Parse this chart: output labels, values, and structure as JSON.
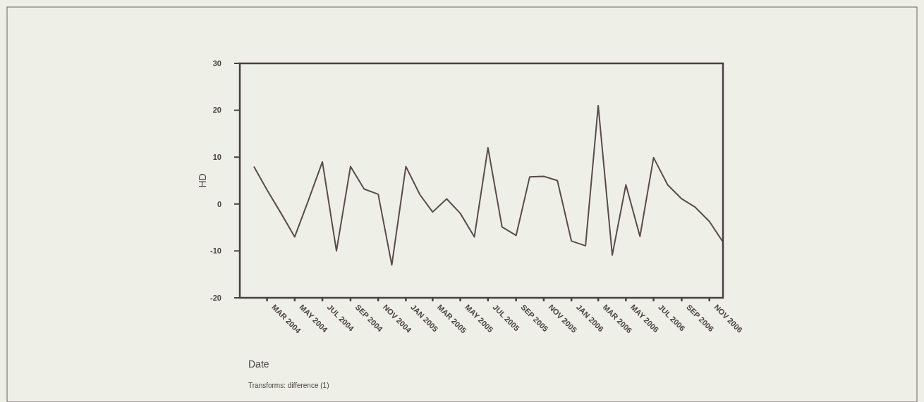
{
  "chart_data": {
    "type": "line",
    "ylabel": "HD",
    "xlabel": "Date",
    "annotations": [
      "Transforms: difference (1)"
    ],
    "x": [
      "2004-02",
      "2004-03",
      "2004-04",
      "2004-05",
      "2004-06",
      "2004-07",
      "2004-08",
      "2004-09",
      "2004-10",
      "2004-11",
      "2004-12",
      "2005-01",
      "2005-02",
      "2005-03",
      "2005-04",
      "2005-05",
      "2005-06",
      "2005-07",
      "2005-08",
      "2005-09",
      "2005-10",
      "2005-11",
      "2005-12",
      "2006-01",
      "2006-02",
      "2006-03",
      "2006-04",
      "2006-05",
      "2006-06",
      "2006-07",
      "2006-08",
      "2006-09",
      "2006-10",
      "2006-11",
      "2006-12"
    ],
    "series": [
      {
        "color": "#5b4a4c",
        "values": [
          8,
          3,
          -2,
          -7,
          1,
          9,
          -10,
          8,
          3.2,
          2.1,
          -13,
          8,
          2,
          -1.7,
          1.1,
          -2,
          -7,
          12,
          -4.9,
          -6.7,
          5.8,
          5.9,
          5,
          -7.9,
          -8.9,
          21,
          -10.9,
          4.1,
          -6.9,
          9.9,
          4.1,
          1.1,
          -0.7,
          -3.7,
          -8.1
        ]
      }
    ],
    "xlim": [
      "2004-01",
      "2006-12"
    ],
    "xticks": [
      {
        "value": "2004-03",
        "label": "MAR 2004"
      },
      {
        "value": "2004-05",
        "label": "MAY 2004"
      },
      {
        "value": "2004-07",
        "label": "JUL 2004"
      },
      {
        "value": "2004-09",
        "label": "SEP 2004"
      },
      {
        "value": "2004-11",
        "label": "NOV 2004"
      },
      {
        "value": "2005-01",
        "label": "JAN 2005"
      },
      {
        "value": "2005-03",
        "label": "MAR 2005"
      },
      {
        "value": "2005-05",
        "label": "MAY 2005"
      },
      {
        "value": "2005-07",
        "label": "JUL 2005"
      },
      {
        "value": "2005-09",
        "label": "SEP 2005"
      },
      {
        "value": "2005-11",
        "label": "NOV 2005"
      },
      {
        "value": "2006-01",
        "label": "JAN 2006"
      },
      {
        "value": "2006-03",
        "label": "MAR 2006"
      },
      {
        "value": "2006-05",
        "label": "MAY 2006"
      },
      {
        "value": "2006-07",
        "label": "JUL 2006"
      },
      {
        "value": "2006-09",
        "label": "SEP 2006"
      },
      {
        "value": "2006-11",
        "label": "NOV 2006"
      }
    ],
    "ylim": [
      -20,
      30
    ],
    "yticks": [
      -20,
      -10,
      0,
      10,
      20,
      30
    ],
    "grid": false,
    "marker": "none",
    "line_style": "solid"
  }
}
